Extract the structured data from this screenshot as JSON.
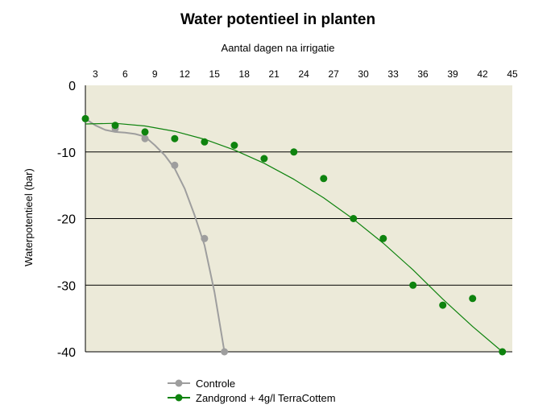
{
  "chart_data": {
    "type": "scatter",
    "title": "Water potentieel in planten",
    "xlabel": "Aantal dagen na irrigatie",
    "ylabel": "Waterpotentieel (bar)",
    "x_axis_position": "top",
    "xlim": [
      2,
      45
    ],
    "ylim": [
      -40,
      0
    ],
    "x_ticks": [
      3,
      6,
      9,
      12,
      15,
      18,
      21,
      24,
      27,
      30,
      33,
      36,
      39,
      42,
      45
    ],
    "y_ticks": [
      0,
      -10,
      -20,
      -30,
      -40
    ],
    "y_tick_labels": [
      "0",
      "-10",
      "-20",
      "-30",
      "-40"
    ],
    "grid": "horizontal",
    "plot_background": "#ecead9",
    "legend_position": "bottom",
    "series": [
      {
        "name": "Controle",
        "color": "#9e9e9e",
        "x": [
          2,
          5,
          8,
          11,
          14,
          16
        ],
        "y": [
          -5,
          -6.5,
          -8,
          -12,
          -23,
          -40
        ],
        "curve_x": [
          2,
          3,
          4,
          5,
          6,
          7,
          8,
          9,
          10,
          11,
          12,
          13,
          14,
          15,
          16
        ],
        "curve_y": [
          -5,
          -6,
          -6.7,
          -7,
          -7.1,
          -7.3,
          -7.7,
          -9,
          -10.5,
          -12.5,
          -15.5,
          -19.5,
          -24,
          -31,
          -40
        ]
      },
      {
        "name": "Zandgrond + 4g/l TerraCottem",
        "color": "#0e830e",
        "x": [
          2,
          5,
          8,
          11,
          14,
          17,
          20,
          23,
          26,
          29,
          32,
          35,
          38,
          41,
          44
        ],
        "y": [
          -5,
          -6,
          -7,
          -8,
          -8.5,
          -9,
          -11,
          -10,
          -14,
          -20,
          -23,
          -30,
          -33,
          -32,
          -40
        ],
        "curve_x": [
          2,
          5,
          8,
          11,
          14,
          17,
          20,
          23,
          26,
          29,
          32,
          35,
          38,
          41,
          44
        ],
        "curve_y": [
          -5.8,
          -5.7,
          -6.1,
          -6.9,
          -8.1,
          -9.7,
          -11.7,
          -14.1,
          -16.9,
          -20.1,
          -23.7,
          -27.7,
          -32.1,
          -36.2,
          -40
        ]
      }
    ]
  }
}
